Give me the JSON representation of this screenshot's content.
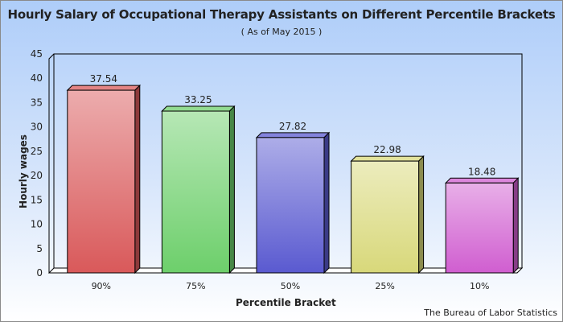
{
  "chart_data": {
    "type": "bar",
    "title": "Hourly Salary of Occupational Therapy Assistants on Different Percentile Brackets",
    "subtitle": "( As of May 2015 )",
    "xlabel": "Percentile Bracket",
    "ylabel": "Hourly wages",
    "categories": [
      "90%",
      "75%",
      "50%",
      "25%",
      "10%"
    ],
    "values": [
      37.54,
      33.25,
      27.82,
      22.98,
      18.48
    ],
    "data_labels": [
      "37.54",
      "33.25",
      "27.82",
      "22.98",
      "18.48"
    ],
    "ylim": [
      0,
      45
    ],
    "yticks": [
      0,
      5,
      10,
      15,
      20,
      25,
      30,
      35,
      40,
      45
    ],
    "grid": false,
    "legend": "none",
    "style": "3d",
    "colors": [
      "#d9595a",
      "#6dcf6b",
      "#5a5ad0",
      "#d8d87a",
      "#d05ed0"
    ],
    "source": "The Bureau of Labor Statistics"
  }
}
